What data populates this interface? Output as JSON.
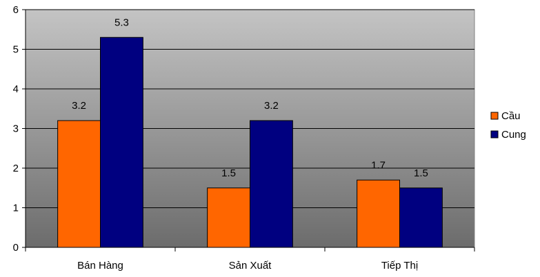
{
  "chart_data": {
    "type": "bar",
    "categories": [
      "Bán Hàng",
      "Sản Xuất",
      "Tiếp Thị"
    ],
    "series": [
      {
        "name": "Cầu",
        "values": [
          3.2,
          1.5,
          1.7
        ],
        "color": "#ff6600"
      },
      {
        "name": "Cung",
        "values": [
          5.3,
          3.2,
          1.5
        ],
        "color": "#000080"
      }
    ],
    "ylim": [
      0,
      6
    ],
    "yticks": [
      0,
      1,
      2,
      3,
      4,
      5,
      6
    ],
    "grid": true,
    "legend": "right",
    "background_gradient": [
      "#c4c4c4",
      "#6c6c6c"
    ]
  }
}
